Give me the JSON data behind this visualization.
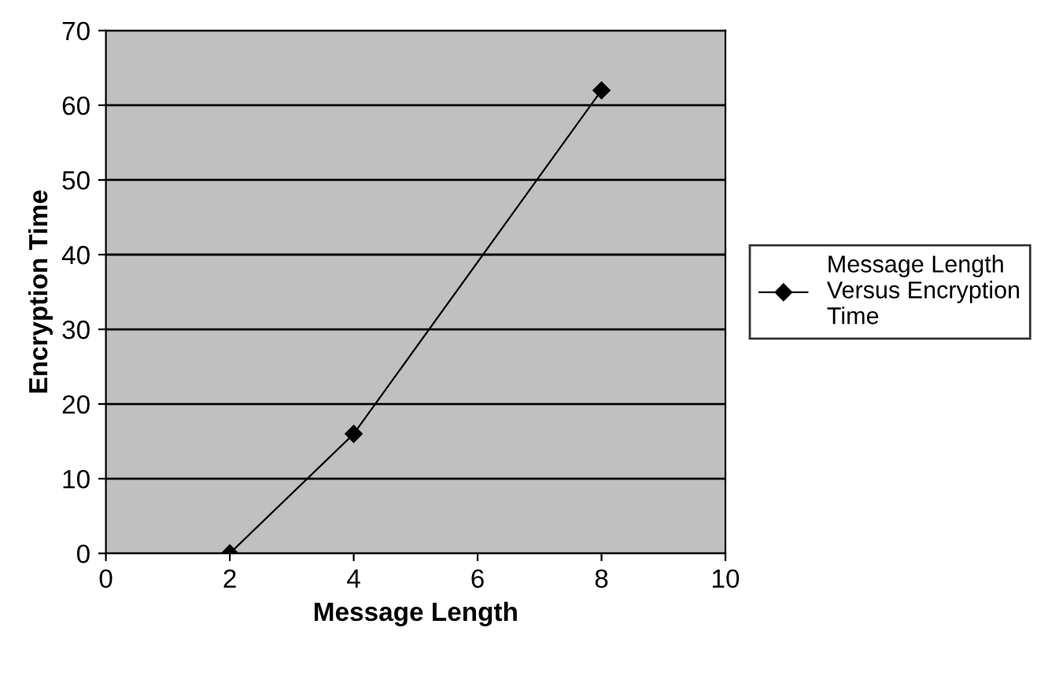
{
  "chart_data": {
    "type": "line",
    "xlabel": "Message Length",
    "ylabel": "Encryption Time",
    "x": [
      2,
      4,
      8
    ],
    "series": [
      {
        "name": "Message Length\nVersus Encryption\nTime",
        "color": "#000000",
        "values": [
          0,
          16,
          62
        ]
      }
    ],
    "xlim": [
      0,
      10
    ],
    "xticks": [
      0,
      2,
      4,
      6,
      8,
      10
    ],
    "ylim": [
      0,
      70
    ],
    "yticks": [
      0,
      10,
      20,
      30,
      40,
      50,
      60,
      70
    ],
    "grid": "y",
    "legend": "right",
    "marker": "diamond",
    "line_style": "solid"
  }
}
